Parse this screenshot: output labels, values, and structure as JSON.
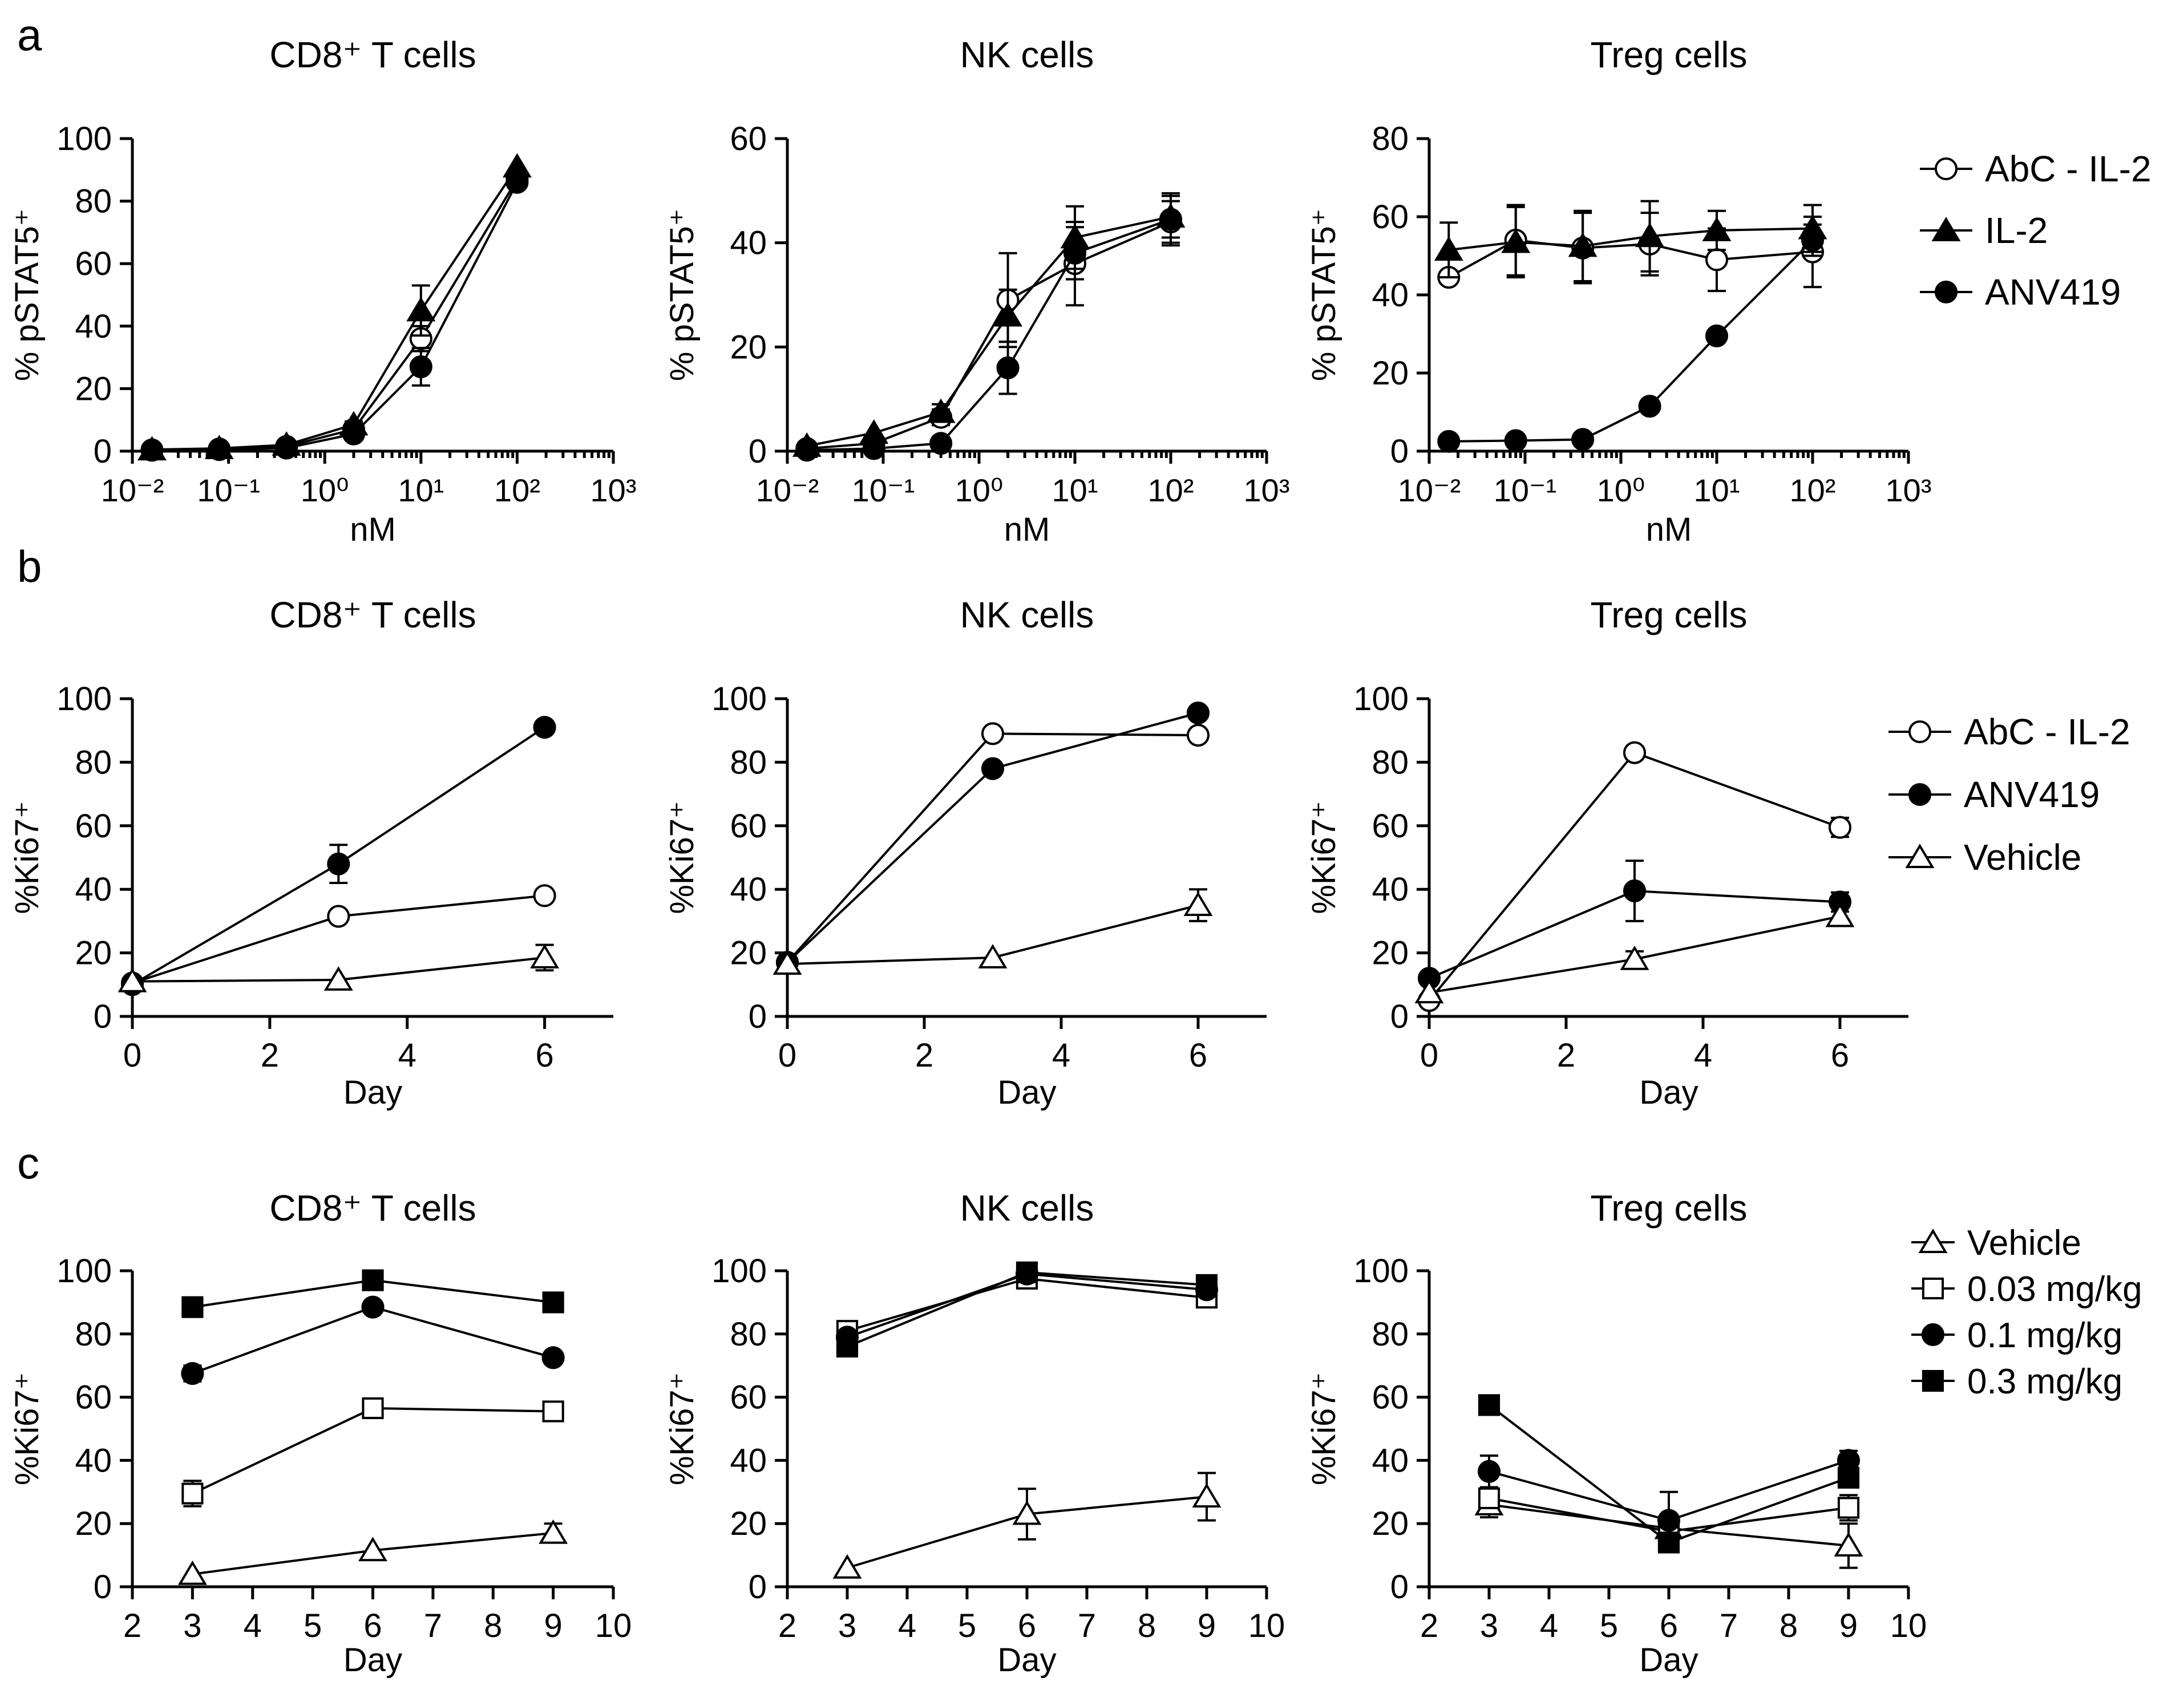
{
  "figure": {
    "panel_labels": [
      "a",
      "b",
      "c"
    ]
  },
  "legends": [
    {
      "panel": "a",
      "entries": [
        {
          "label": "AbC - IL-2",
          "marker": "circle-open"
        },
        {
          "label": "IL-2",
          "marker": "triangle-filled"
        },
        {
          "label": "ANV419",
          "marker": "circle-filled"
        }
      ]
    },
    {
      "panel": "b",
      "entries": [
        {
          "label": "AbC - IL-2",
          "marker": "circle-open"
        },
        {
          "label": "ANV419",
          "marker": "circle-filled"
        },
        {
          "label": "Vehicle",
          "marker": "triangle-open"
        }
      ]
    },
    {
      "panel": "c",
      "entries": [
        {
          "label": "Vehicle",
          "marker": "triangle-open"
        },
        {
          "label": "0.03 mg/kg",
          "marker": "square-open"
        },
        {
          "label": "0.1 mg/kg",
          "marker": "circle-filled"
        },
        {
          "label": "0.3 mg/kg",
          "marker": "square-filled"
        }
      ]
    }
  ],
  "chart_data": [
    {
      "id": "a1",
      "type": "line",
      "title": "CD8⁺ T cells",
      "xscale": "log",
      "xlabel": "nM",
      "ylabel": "% pSTAT5⁺",
      "xlim": [
        0.01,
        1000
      ],
      "ylim": [
        0,
        100
      ],
      "ytick_step": 20,
      "xtick_labels": [
        "10⁻²",
        "10⁻¹",
        "10⁰",
        "10¹",
        "10²",
        "10³"
      ],
      "series": [
        {
          "name": "AbC - IL-2",
          "marker": "circle-open",
          "x": [
            0.016,
            0.08,
            0.4,
            2,
            10,
            100
          ],
          "y": [
            0.4,
            0.7,
            1.5,
            7,
            36,
            87
          ],
          "err": [
            0,
            0,
            0,
            1,
            4,
            0
          ]
        },
        {
          "name": "IL-2",
          "marker": "triangle-filled",
          "x": [
            0.016,
            0.08,
            0.4,
            2,
            10,
            100
          ],
          "y": [
            0.5,
            0.9,
            2,
            8.5,
            45,
            91
          ],
          "err": [
            0,
            0,
            0,
            1,
            8,
            0
          ]
        },
        {
          "name": "ANV419",
          "marker": "circle-filled",
          "x": [
            0.016,
            0.08,
            0.4,
            2,
            10,
            100
          ],
          "y": [
            0.3,
            0.5,
            1,
            5.5,
            27,
            86
          ],
          "err": [
            0,
            0,
            0,
            1,
            6,
            0
          ]
        }
      ]
    },
    {
      "id": "a2",
      "type": "line",
      "title": "NK cells",
      "xscale": "log",
      "xlabel": "nM",
      "ylabel": "% pSTAT5⁺",
      "xlim": [
        0.01,
        1000
      ],
      "ylim": [
        0,
        60
      ],
      "ytick_step": 20,
      "xtick_labels": [
        "10⁻²",
        "10⁻¹",
        "10⁰",
        "10¹",
        "10²",
        "10³"
      ],
      "series": [
        {
          "name": "AbC - IL-2",
          "marker": "circle-open",
          "x": [
            0.016,
            0.08,
            0.4,
            2,
            10,
            100
          ],
          "y": [
            0.5,
            1.5,
            6.5,
            29,
            36,
            44
          ],
          "err": [
            0,
            0,
            1.5,
            9,
            8,
            4
          ]
        },
        {
          "name": "IL-2",
          "marker": "triangle-filled",
          "x": [
            0.016,
            0.08,
            0.4,
            2,
            10,
            100
          ],
          "y": [
            1,
            3.5,
            7.5,
            26,
            41,
            45
          ],
          "err": [
            0,
            0,
            1.5,
            5,
            6,
            4
          ]
        },
        {
          "name": "ANV419",
          "marker": "circle-filled",
          "x": [
            0.016,
            0.08,
            0.4,
            2,
            10,
            100
          ],
          "y": [
            0.2,
            0.5,
            1.5,
            16,
            38,
            44.5
          ],
          "err": [
            0,
            0,
            0,
            5,
            5,
            5
          ]
        }
      ]
    },
    {
      "id": "a3",
      "type": "line",
      "title": "Treg cells",
      "xscale": "log",
      "xlabel": "nM",
      "ylabel": "% pSTAT5⁺",
      "xlim": [
        0.01,
        1000
      ],
      "ylim": [
        0,
        80
      ],
      "ytick_step": 20,
      "xtick_labels": [
        "10⁻²",
        "10⁻¹",
        "10⁰",
        "10¹",
        "10²",
        "10³"
      ],
      "series": [
        {
          "name": "AbC - IL-2",
          "marker": "circle-open",
          "x": [
            0.016,
            0.08,
            0.4,
            2,
            10,
            100
          ],
          "y": [
            44.5,
            54,
            52,
            53,
            49,
            51
          ],
          "err": [
            0,
            9,
            9,
            8,
            8,
            9
          ]
        },
        {
          "name": "IL-2",
          "marker": "triangle-filled",
          "x": [
            0.016,
            0.08,
            0.4,
            2,
            10,
            100
          ],
          "y": [
            51.5,
            53.5,
            52.5,
            55,
            56.5,
            57
          ],
          "err": [
            7,
            9,
            9,
            9,
            5,
            6
          ]
        },
        {
          "name": "ANV419",
          "marker": "circle-filled",
          "x": [
            0.016,
            0.08,
            0.4,
            2,
            10,
            100
          ],
          "y": [
            2.5,
            2.7,
            3,
            11.5,
            29.5,
            54
          ],
          "err": [
            0,
            0,
            0,
            0,
            0,
            4
          ]
        }
      ]
    },
    {
      "id": "b1",
      "type": "line",
      "title": "CD8⁺ T cells",
      "xscale": "linear",
      "xlabel": "Day",
      "ylabel": "%Ki67⁺",
      "xlim": [
        0,
        7
      ],
      "xticks": [
        0,
        2,
        4,
        6
      ],
      "ylim": [
        0,
        100
      ],
      "ytick_step": 20,
      "series": [
        {
          "name": "AbC - IL-2",
          "marker": "circle-open",
          "x": [
            0,
            3,
            6
          ],
          "y": [
            10.5,
            31.5,
            38
          ],
          "err": [
            0,
            0,
            0
          ]
        },
        {
          "name": "ANV419",
          "marker": "circle-filled",
          "x": [
            0,
            3,
            6
          ],
          "y": [
            10,
            48,
            91
          ],
          "err": [
            0,
            6,
            0
          ]
        },
        {
          "name": "Vehicle",
          "marker": "triangle-open",
          "x": [
            0,
            3,
            6
          ],
          "y": [
            11,
            11.5,
            18.5
          ],
          "err": [
            0,
            0,
            4
          ]
        }
      ]
    },
    {
      "id": "b2",
      "type": "line",
      "title": "NK cells",
      "xscale": "linear",
      "xlabel": "Day",
      "ylabel": "%Ki67⁺",
      "xlim": [
        0,
        7
      ],
      "xticks": [
        0,
        2,
        4,
        6
      ],
      "ylim": [
        0,
        100
      ],
      "ytick_step": 20,
      "series": [
        {
          "name": "AbC - IL-2",
          "marker": "circle-open",
          "x": [
            0,
            3,
            6
          ],
          "y": [
            17,
            89,
            88.5
          ],
          "err": [
            0,
            0,
            0
          ]
        },
        {
          "name": "ANV419",
          "marker": "circle-filled",
          "x": [
            0,
            3,
            6
          ],
          "y": [
            17,
            78,
            95.5
          ],
          "err": [
            0,
            0,
            0
          ]
        },
        {
          "name": "Vehicle",
          "marker": "triangle-open",
          "x": [
            0,
            3,
            6
          ],
          "y": [
            16.5,
            18.5,
            35
          ],
          "err": [
            0,
            0,
            5
          ]
        }
      ]
    },
    {
      "id": "b3",
      "type": "line",
      "title": "Treg cells",
      "xscale": "linear",
      "xlabel": "Day",
      "ylabel": "%Ki67⁺",
      "xlim": [
        0,
        7
      ],
      "xticks": [
        0,
        2,
        4,
        6
      ],
      "ylim": [
        0,
        100
      ],
      "ytick_step": 20,
      "series": [
        {
          "name": "AbC - IL-2",
          "marker": "circle-open",
          "x": [
            0,
            3,
            6
          ],
          "y": [
            5,
            83,
            59.5
          ],
          "err": [
            0,
            2,
            3
          ]
        },
        {
          "name": "ANV419",
          "marker": "circle-filled",
          "x": [
            0,
            3,
            6
          ],
          "y": [
            12,
            39.5,
            36
          ],
          "err": [
            0,
            9.5,
            3
          ]
        },
        {
          "name": "Vehicle",
          "marker": "triangle-open",
          "x": [
            0,
            3,
            6
          ],
          "y": [
            7.5,
            18,
            31.5
          ],
          "err": [
            0,
            2.5,
            3
          ]
        }
      ]
    },
    {
      "id": "c1",
      "type": "line",
      "title": "CD8⁺ T cells",
      "xscale": "linear",
      "xlabel": "Day",
      "ylabel": "%Ki67⁺",
      "xlim": [
        2,
        10
      ],
      "xticks": [
        2,
        3,
        4,
        5,
        6,
        7,
        8,
        9,
        10
      ],
      "ylim": [
        0,
        100
      ],
      "ytick_step": 20,
      "series": [
        {
          "name": "Vehicle",
          "marker": "triangle-open",
          "x": [
            3,
            6,
            9
          ],
          "y": [
            4,
            11.5,
            17
          ],
          "err": [
            0,
            0,
            3
          ]
        },
        {
          "name": "0.03 mg/kg",
          "marker": "square-open",
          "x": [
            3,
            6,
            9
          ],
          "y": [
            29.5,
            56.5,
            55.5
          ],
          "err": [
            4,
            0,
            0
          ]
        },
        {
          "name": "0.1 mg/kg",
          "marker": "circle-filled",
          "x": [
            3,
            6,
            9
          ],
          "y": [
            67.5,
            88.5,
            72.5
          ],
          "err": [
            2.5,
            0,
            0
          ]
        },
        {
          "name": "0.3 mg/kg",
          "marker": "square-filled",
          "x": [
            3,
            6,
            9
          ],
          "y": [
            88.5,
            97,
            90
          ],
          "err": [
            0,
            0,
            0
          ]
        }
      ]
    },
    {
      "id": "c2",
      "type": "line",
      "title": "NK cells",
      "xscale": "linear",
      "xlabel": "Day",
      "ylabel": "%Ki67⁺",
      "xlim": [
        2,
        10
      ],
      "xticks": [
        2,
        3,
        4,
        5,
        6,
        7,
        8,
        9,
        10
      ],
      "ylim": [
        0,
        100
      ],
      "ytick_step": 20,
      "series": [
        {
          "name": "Vehicle",
          "marker": "triangle-open",
          "x": [
            3,
            6,
            9
          ],
          "y": [
            6,
            23,
            28.5
          ],
          "err": [
            0,
            8,
            7.5
          ]
        },
        {
          "name": "0.03 mg/kg",
          "marker": "square-open",
          "x": [
            3,
            6,
            9
          ],
          "y": [
            81,
            97.5,
            91.5
          ],
          "err": [
            0,
            0,
            0
          ]
        },
        {
          "name": "0.1 mg/kg",
          "marker": "circle-filled",
          "x": [
            3,
            6,
            9
          ],
          "y": [
            79,
            99,
            94
          ],
          "err": [
            0,
            0,
            0
          ]
        },
        {
          "name": "0.3 mg/kg",
          "marker": "square-filled",
          "x": [
            3,
            6,
            9
          ],
          "y": [
            76,
            99.5,
            95.5
          ],
          "err": [
            0,
            0,
            0
          ]
        }
      ]
    },
    {
      "id": "c3",
      "type": "line",
      "title": "Treg cells",
      "xscale": "linear",
      "xlabel": "Day",
      "ylabel": "%Ki67⁺",
      "xlim": [
        2,
        10
      ],
      "xticks": [
        2,
        3,
        4,
        5,
        6,
        7,
        8,
        9,
        10
      ],
      "ylim": [
        0,
        100
      ],
      "ytick_step": 20,
      "series": [
        {
          "name": "Vehicle",
          "marker": "triangle-open",
          "x": [
            3,
            6,
            9
          ],
          "y": [
            26,
            18.5,
            13
          ],
          "err": [
            4,
            0,
            7
          ]
        },
        {
          "name": "0.03 mg/kg",
          "marker": "square-open",
          "x": [
            3,
            6,
            9
          ],
          "y": [
            28,
            17.5,
            25
          ],
          "err": [
            3,
            0,
            4
          ]
        },
        {
          "name": "0.1 mg/kg",
          "marker": "circle-filled",
          "x": [
            3,
            6,
            9
          ],
          "y": [
            36.5,
            21,
            40
          ],
          "err": [
            5,
            9,
            3
          ]
        },
        {
          "name": "0.3 mg/kg",
          "marker": "square-filled",
          "x": [
            3,
            6,
            9
          ],
          "y": [
            57.5,
            14,
            34.5
          ],
          "err": [
            0,
            0,
            0
          ]
        }
      ]
    }
  ]
}
